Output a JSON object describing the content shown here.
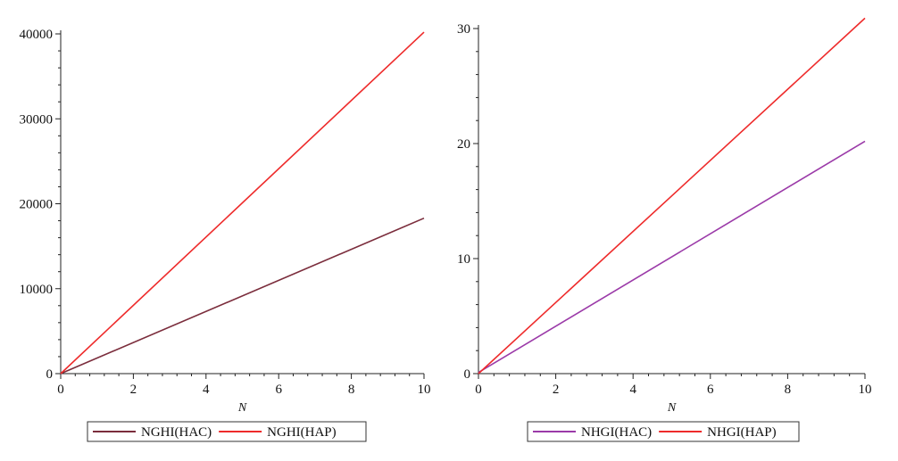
{
  "chart_data": [
    {
      "type": "line",
      "title": "",
      "xlabel": "N",
      "ylabel": "",
      "xlim": [
        0,
        10
      ],
      "ylim": [
        0,
        40000
      ],
      "xticks": [
        "0",
        "2",
        "4",
        "6",
        "8",
        "10"
      ],
      "yticks": [
        "0",
        "10000",
        "20000",
        "30000",
        "40000"
      ],
      "legend_position": "bottom",
      "grid": false,
      "series": [
        {
          "name": "NGHI(HAC)",
          "color": "#7b2d3c",
          "x": [
            0,
            10
          ],
          "y": [
            0,
            18300
          ]
        },
        {
          "name": "NGHI(HAP)",
          "color": "#ee2b2b",
          "x": [
            0,
            10
          ],
          "y": [
            0,
            40200
          ]
        }
      ]
    },
    {
      "type": "line",
      "title": "",
      "xlabel": "N",
      "ylabel": "",
      "xlim": [
        0,
        10
      ],
      "ylim": [
        0,
        30
      ],
      "xticks": [
        "0",
        "2",
        "4",
        "6",
        "8",
        "10"
      ],
      "yticks": [
        "0",
        "10",
        "20",
        "30"
      ],
      "legend_position": "bottom",
      "grid": false,
      "series": [
        {
          "name": "NHGI(HAC)",
          "color": "#9b3aa8",
          "x": [
            0,
            10
          ],
          "y": [
            0.1,
            20.2
          ]
        },
        {
          "name": "NHGI(HAP)",
          "color": "#ee2b2b",
          "x": [
            0,
            10
          ],
          "y": [
            0,
            30.9
          ]
        }
      ]
    }
  ]
}
